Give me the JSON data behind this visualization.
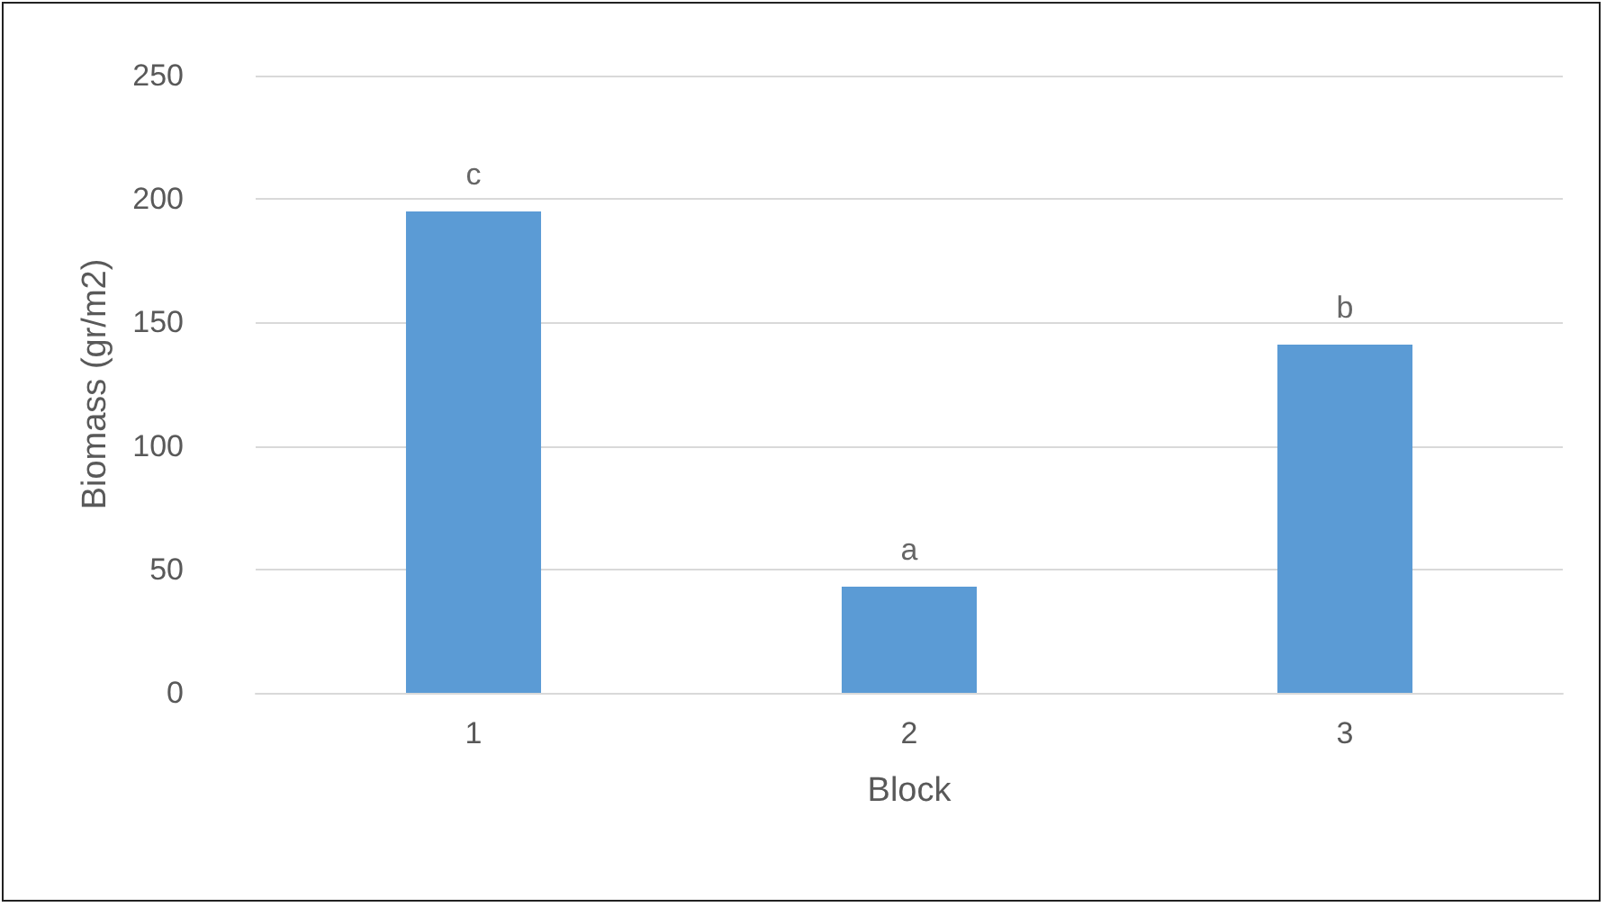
{
  "chart_data": {
    "type": "bar",
    "xlabel": "Block",
    "ylabel": "Biomass (gr/m2)",
    "categories": [
      "1",
      "2",
      "3"
    ],
    "values": [
      195,
      43,
      141
    ],
    "color": "#5b9bd5",
    "ylim": [
      0,
      250
    ],
    "yticks": [
      0,
      50,
      100,
      150,
      200,
      250
    ],
    "grid": "y",
    "annotations": [
      {
        "text": "c",
        "x": "1",
        "y": 195
      },
      {
        "text": "a",
        "x": "2",
        "y": 43
      },
      {
        "text": "b",
        "x": "3",
        "y": 141
      }
    ]
  }
}
